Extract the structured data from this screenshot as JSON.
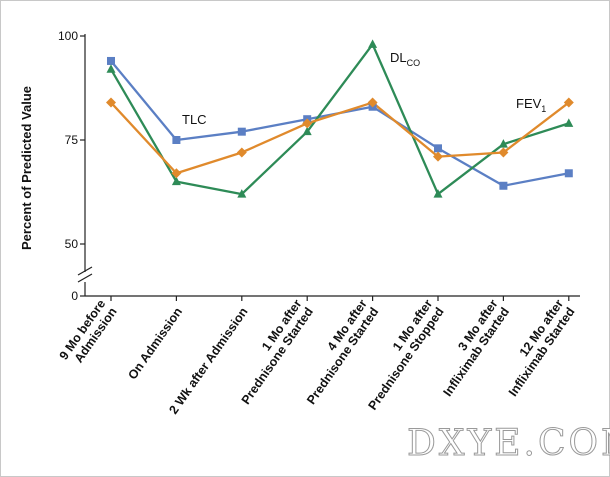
{
  "chart_data": {
    "type": "line",
    "ylabel": "Percent of Predicted Value",
    "xlabel": "",
    "title": "",
    "ylim": [
      0,
      100
    ],
    "axis_break": true,
    "y_ticks": [
      {
        "value": 100,
        "label": "100"
      },
      {
        "value": 75,
        "label": "75"
      },
      {
        "value": 50,
        "label": "50"
      },
      {
        "value": 0,
        "label": "0"
      }
    ],
    "categories": [
      [
        "9 Mo before",
        "Admission"
      ],
      [
        "On Admission"
      ],
      [
        "2 Wk after Admission"
      ],
      [
        "1 Mo after",
        "Prednisone Started"
      ],
      [
        "4 Mo after",
        "Prednisone Started"
      ],
      [
        "1 Mo after",
        "Prednisone Stopped"
      ],
      [
        "3 Mo after",
        "Infliximab Started"
      ],
      [
        "12 Mo after",
        "Infliximab Started"
      ]
    ],
    "series": [
      {
        "name": "TLC",
        "label_main": "TLC",
        "label_sub": "",
        "color": "#5b7fc4",
        "marker": "square",
        "values": [
          94,
          75,
          77,
          80,
          83,
          73,
          64,
          67
        ]
      },
      {
        "name": "DLCO",
        "label_main": "DL",
        "label_sub": "CO",
        "color": "#2e8b57",
        "marker": "triangle",
        "values": [
          92,
          65,
          62,
          77,
          98,
          62,
          74,
          79
        ]
      },
      {
        "name": "FEV1",
        "label_main": "FEV",
        "label_sub": "1",
        "color": "#e08a2c",
        "marker": "diamond",
        "values": [
          84,
          67,
          72,
          79,
          84,
          71,
          72,
          84
        ]
      }
    ],
    "grid": false,
    "legend": "inline"
  },
  "watermark": "DXYE.COM"
}
